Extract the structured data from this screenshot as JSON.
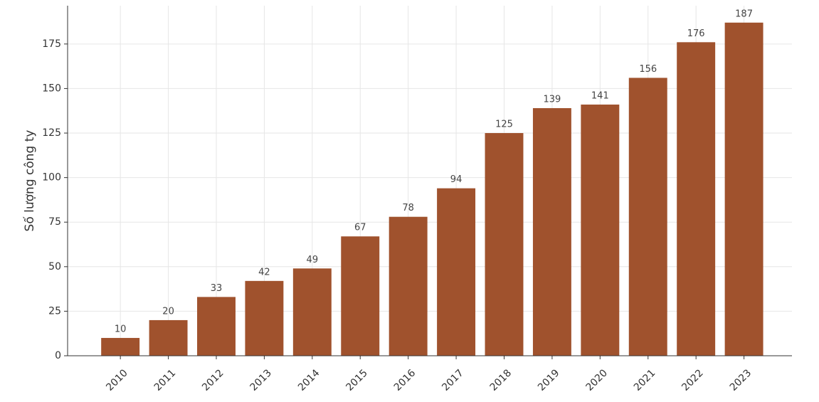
{
  "chart_data": {
    "type": "bar",
    "y_label": "Số lượng công ty",
    "categories": [
      "2010",
      "2011",
      "2012",
      "2013",
      "2014",
      "2015",
      "2016",
      "2017",
      "2018",
      "2019",
      "2020",
      "2021",
      "2022",
      "2023"
    ],
    "values": [
      10,
      20,
      33,
      42,
      49,
      67,
      78,
      94,
      125,
      139,
      141,
      156,
      176,
      187
    ],
    "color": "#a0522d",
    "ylim": [
      0,
      196.5
    ],
    "yticks": [
      0,
      25,
      50,
      75,
      100,
      125,
      150,
      175
    ],
    "grid": true
  }
}
